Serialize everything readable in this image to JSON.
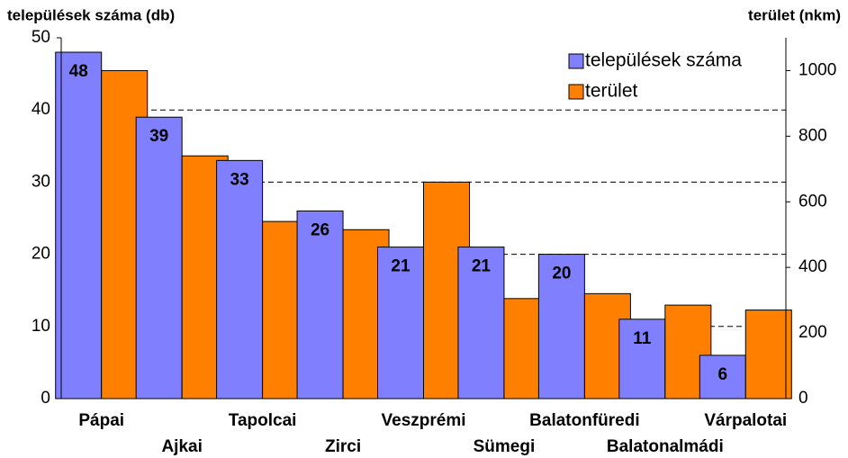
{
  "chart_data": {
    "type": "bar",
    "ylabel": "települések száma (db)",
    "y2label": "terület (nkm)",
    "categories": [
      "Pápai",
      "Ajkai",
      "Tapolcai",
      "Zirci",
      "Veszprémi",
      "Sümegi",
      "Balatonfüredi",
      "Balatonalmádi",
      "Várpalotai"
    ],
    "series": [
      {
        "name": "települések száma",
        "color": "#8080ff",
        "values": [
          48,
          39,
          33,
          26,
          21,
          21,
          20,
          11,
          6
        ]
      },
      {
        "name": "terület",
        "color": "#ff8000",
        "axis": "y2",
        "values": [
          1000,
          740,
          540,
          515,
          660,
          305,
          320,
          285,
          270
        ]
      }
    ],
    "ylim": [
      0,
      50
    ],
    "yticks": [
      0,
      10,
      20,
      30,
      40,
      50
    ],
    "y2lim": [
      0,
      1100
    ],
    "y2ticks": [
      0,
      200,
      400,
      600,
      800,
      1000
    ],
    "grid": true,
    "legend": "upper right"
  }
}
